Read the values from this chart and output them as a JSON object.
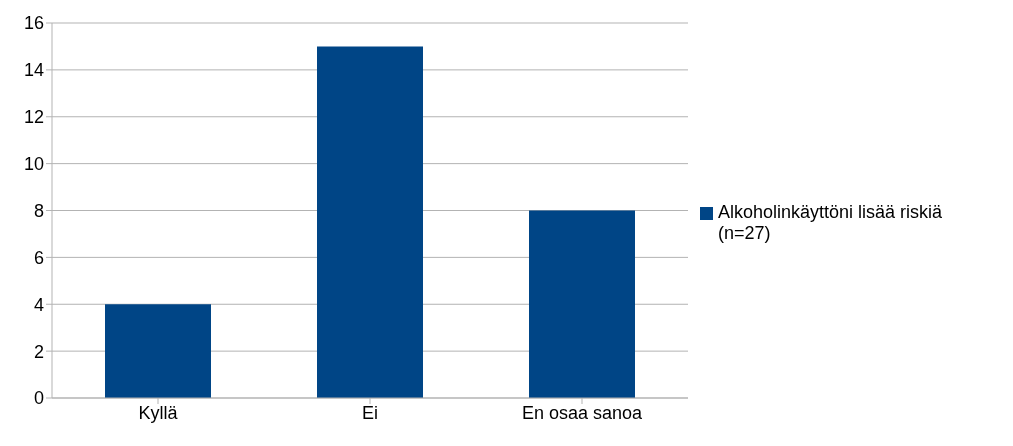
{
  "chart_data": {
    "type": "bar",
    "categories": [
      "Kyllä",
      "Ei",
      "En osaa sanoa"
    ],
    "series": [
      {
        "name": "Alkoholinkäyttöni lisää riskiä (n=27)",
        "color": "#004586",
        "values": [
          4,
          15,
          8
        ]
      }
    ],
    "ylim": [
      0,
      16
    ],
    "yticks": [
      0,
      2,
      4,
      6,
      8,
      10,
      12,
      14,
      16
    ],
    "grid": "y",
    "legend": "right"
  }
}
